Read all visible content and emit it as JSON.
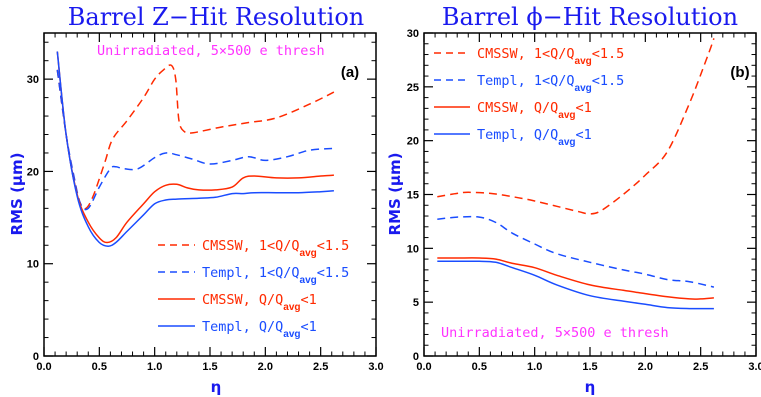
{
  "chart_data": [
    {
      "type": "line",
      "title": "Barrel Z−Hit Resolution",
      "xlabel": "η",
      "ylabel": "RMS (μm)",
      "xlim": [
        0,
        3
      ],
      "ylim": [
        0,
        35
      ],
      "xticks": [
        "0.0",
        "0.5",
        "1.0",
        "1.5",
        "2.0",
        "2.5",
        "3.0"
      ],
      "yticks": [
        "0",
        "10",
        "20",
        "30"
      ],
      "ytick_values": [
        0,
        10,
        20,
        30
      ],
      "annotation": "Unirradiated, 5×500 e thresh",
      "annotation_pos": "top-right",
      "panel_label": "(a)",
      "legend_placement": "bottom-right",
      "series": [
        {
          "name": "CMSSW, 1<Q/Qavg<1.5",
          "color": "#ff2a00",
          "style": "dashed",
          "x": [
            0.12,
            0.2,
            0.27,
            0.33,
            0.38,
            0.45,
            0.55,
            0.62,
            0.75,
            0.9,
            1.0,
            1.08,
            1.15,
            1.19,
            1.22,
            1.27,
            1.35,
            1.6,
            1.85,
            2.1,
            2.4,
            2.62
          ],
          "y": [
            31,
            24,
            19,
            16.5,
            16,
            17.5,
            21,
            23.5,
            25.5,
            28,
            30,
            31,
            31.5,
            30,
            25.5,
            24.3,
            24.2,
            24.8,
            25.3,
            25.8,
            27.3,
            28.6
          ]
        },
        {
          "name": "Templ, 1<Q/Qavg<1.5",
          "color": "#1a4dff",
          "style": "dashed",
          "x": [
            0.12,
            0.2,
            0.27,
            0.33,
            0.4,
            0.5,
            0.6,
            0.65,
            0.72,
            0.85,
            1.0,
            1.1,
            1.2,
            1.35,
            1.5,
            1.7,
            1.85,
            2.0,
            2.2,
            2.4,
            2.62
          ],
          "y": [
            31,
            24,
            19.5,
            16.5,
            16,
            18.3,
            20.3,
            20.5,
            20.3,
            20.3,
            21.5,
            22,
            21.8,
            21.3,
            20.8,
            21.2,
            21.6,
            21.2,
            21.6,
            22.3,
            22.5
          ]
        },
        {
          "name": "CMSSW, Q/Qavg<1",
          "color": "#ff2a00",
          "style": "solid",
          "x": [
            0.12,
            0.2,
            0.3,
            0.4,
            0.5,
            0.57,
            0.65,
            0.75,
            0.9,
            1.0,
            1.1,
            1.2,
            1.3,
            1.4,
            1.55,
            1.7,
            1.8,
            1.9,
            2.1,
            2.3,
            2.5,
            2.62
          ],
          "y": [
            33,
            24,
            17.5,
            14.5,
            12.8,
            12.3,
            12.8,
            14.5,
            16.5,
            17.8,
            18.5,
            18.6,
            18.2,
            18,
            18,
            18.3,
            19.3,
            19.5,
            19.3,
            19.3,
            19.5,
            19.6
          ]
        },
        {
          "name": "Templ, Q/Qavg<1",
          "color": "#1a4dff",
          "style": "solid",
          "x": [
            0.12,
            0.2,
            0.3,
            0.4,
            0.5,
            0.58,
            0.65,
            0.75,
            0.9,
            1.0,
            1.1,
            1.2,
            1.4,
            1.55,
            1.7,
            1.8,
            1.9,
            2.1,
            2.3,
            2.5,
            2.62
          ],
          "y": [
            33,
            24,
            17.3,
            14,
            12.3,
            11.9,
            12.3,
            13.5,
            15.3,
            16.5,
            16.9,
            17,
            17.1,
            17.2,
            17.6,
            17.6,
            17.7,
            17.7,
            17.7,
            17.8,
            17.9
          ]
        }
      ]
    },
    {
      "type": "line",
      "title": "Barrel ϕ−Hit Resolution",
      "xlabel": "η",
      "ylabel": "RMS (μm)",
      "xlim": [
        0,
        3
      ],
      "ylim": [
        0,
        30
      ],
      "xticks": [
        "0.0",
        "0.5",
        "1.0",
        "1.5",
        "2.0",
        "2.5",
        "3.0"
      ],
      "yticks": [
        "0",
        "5",
        "10",
        "15",
        "20",
        "25",
        "30"
      ],
      "ytick_values": [
        0,
        5,
        10,
        15,
        20,
        25,
        30
      ],
      "annotation": "Unirradiated, 5×500 e thresh",
      "annotation_pos": "bottom-right",
      "panel_label": "(b)",
      "legend_placement": "top-left",
      "series": [
        {
          "name": "CMSSW, 1<Q/Qavg<1.5",
          "color": "#ff2a00",
          "style": "dashed",
          "x": [
            0.12,
            0.3,
            0.4,
            0.6,
            0.8,
            1.0,
            1.2,
            1.4,
            1.5,
            1.6,
            1.8,
            2.0,
            2.2,
            2.4,
            2.55,
            2.62
          ],
          "y": [
            14.8,
            15.1,
            15.2,
            15.1,
            14.8,
            14.4,
            13.9,
            13.4,
            13.2,
            13.5,
            15,
            16.8,
            19,
            23.5,
            27.5,
            29.5
          ]
        },
        {
          "name": "Templ, 1<Q/Qavg<1.5",
          "color": "#1a4dff",
          "style": "dashed",
          "x": [
            0.12,
            0.3,
            0.5,
            0.65,
            0.8,
            1.0,
            1.2,
            1.5,
            1.8,
            2.0,
            2.2,
            2.4,
            2.62
          ],
          "y": [
            12.7,
            12.9,
            12.9,
            12.4,
            11.4,
            10.4,
            9.5,
            8.7,
            8.0,
            7.6,
            7.1,
            6.9,
            6.4
          ]
        },
        {
          "name": "CMSSW, Q/Qavg<1",
          "color": "#ff2a00",
          "style": "solid",
          "x": [
            0.12,
            0.3,
            0.5,
            0.65,
            0.8,
            1.0,
            1.2,
            1.5,
            1.8,
            2.0,
            2.2,
            2.4,
            2.5,
            2.62
          ],
          "y": [
            9.1,
            9.1,
            9.1,
            9.0,
            8.6,
            8.2,
            7.5,
            6.6,
            6.1,
            5.8,
            5.5,
            5.3,
            5.3,
            5.4
          ]
        },
        {
          "name": "Templ, Q/Qavg<1",
          "color": "#1a4dff",
          "style": "solid",
          "x": [
            0.12,
            0.3,
            0.5,
            0.65,
            0.8,
            1.0,
            1.2,
            1.5,
            1.8,
            2.0,
            2.2,
            2.4,
            2.62
          ],
          "y": [
            8.8,
            8.8,
            8.8,
            8.7,
            8.2,
            7.5,
            6.6,
            5.6,
            5.1,
            4.8,
            4.5,
            4.4,
            4.4
          ]
        }
      ]
    }
  ]
}
